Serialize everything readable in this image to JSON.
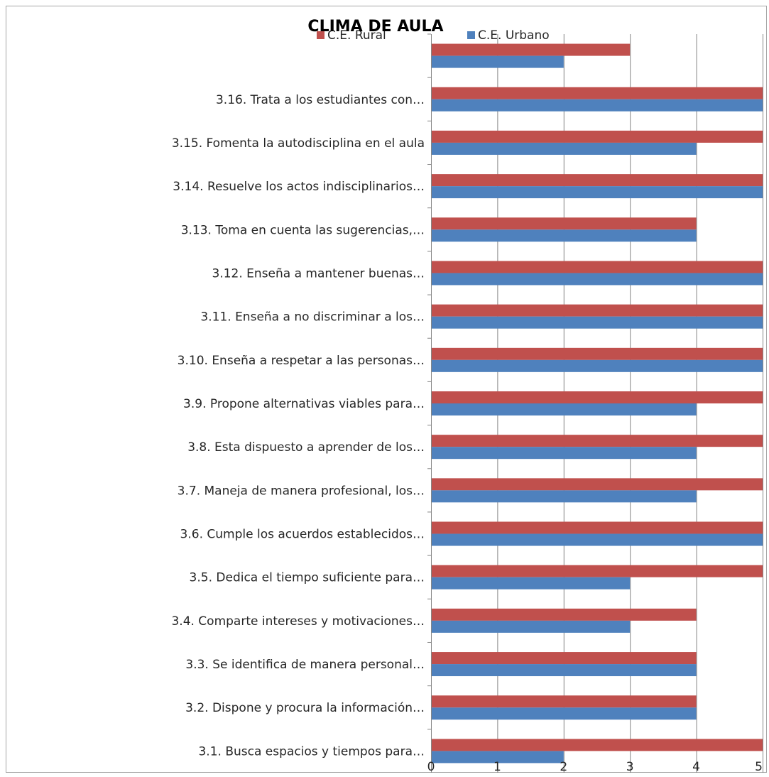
{
  "chart_data": {
    "type": "bar",
    "orientation": "horizontal",
    "title": "CLIMA DE AULA",
    "xlabel": "",
    "ylabel": "",
    "xlim": [
      0,
      5
    ],
    "x_ticks": [
      "0",
      "1",
      "2",
      "3",
      "4",
      "5"
    ],
    "grid": true,
    "legend_position": "top",
    "categories": [
      "",
      "3.16.   Trata a los estudiantes con…",
      "3.15.   Fomenta la autodisciplina en el aula",
      "3.14.   Resuelve los actos indisciplinarios…",
      "3.13.   Toma en cuenta las sugerencias,…",
      "3.12.   Enseña a mantener buenas…",
      "3.11.   Enseña a no discriminar a los…",
      "3.10.   Enseña a respetar a las personas…",
      "3.9.  Propone alternativas viables para…",
      "3.8.  Esta dispuesto a aprender de los…",
      "3.7.  Maneja de manera  profesional, los…",
      "3.6.  Cumple los acuerdos establecidos…",
      "3.5.  Dedica el tiempo suficiente para…",
      "3.4.  Comparte intereses y motivaciones…",
      "3.3.  Se identifica de manera personal…",
      "3.2.  Dispone y procura la información…",
      "3.1.  Busca espacios y tiempos para…"
    ],
    "series": [
      {
        "name": "C.E. Rural",
        "color": "#c0504d",
        "values": [
          3,
          5,
          5,
          5,
          4,
          5,
          5,
          5,
          5,
          5,
          5,
          5,
          5,
          4,
          4,
          4,
          5
        ]
      },
      {
        "name": "C.E. Urbano",
        "color": "#4f81bd",
        "values": [
          2,
          5,
          4,
          5,
          4,
          5,
          5,
          5,
          4,
          4,
          4,
          5,
          3,
          3,
          4,
          4,
          2
        ]
      }
    ]
  }
}
